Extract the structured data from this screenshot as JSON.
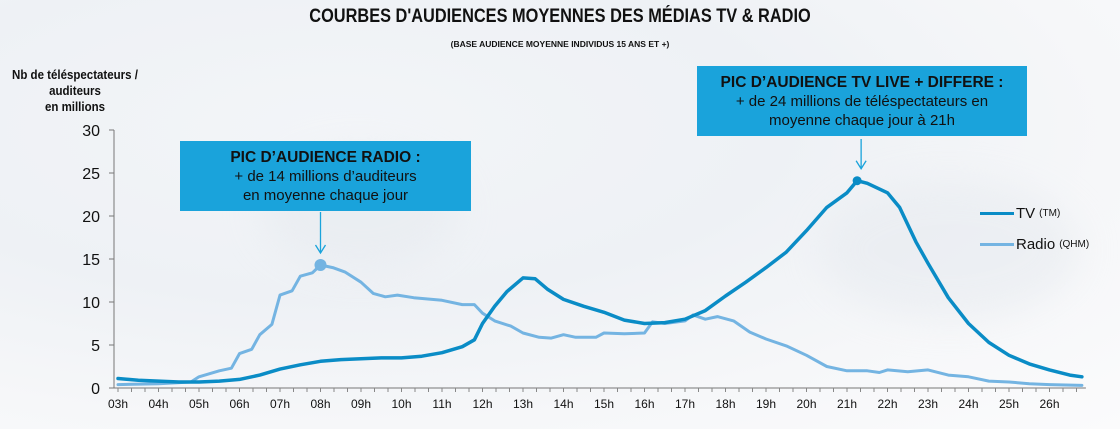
{
  "title": "COURBES D'AUDIENCES MOYENNES DES MÉDIAS TV & RADIO",
  "subtitle": "(BASE AUDIENCE MOYENNE INDIVIDUS 15 ANS ET +)",
  "callouts": {
    "radio": {
      "heading": "PIC D’AUDIENCE RADIO :",
      "line1": "+ de 14 millions d’auditeurs",
      "line2": "en moyenne chaque jour"
    },
    "tv": {
      "heading": "PIC D’AUDIENCE TV LIVE + DIFFERE :",
      "line1": "+ de 24 millions de téléspectateurs en",
      "line2": "moyenne chaque jour à 21h"
    }
  },
  "colors": {
    "tv": "#0a8cc6",
    "radio": "#74b4e2",
    "callout": "#1aa3db"
  },
  "chart_data": {
    "type": "line",
    "title": "COURBES D'AUDIENCES MOYENNES DES MÉDIAS TV & RADIO",
    "ylabel_line1": "Nb de téléspectateurs / auditeurs",
    "ylabel_line2": "en millions",
    "xlabel": "",
    "ylim": [
      0,
      30
    ],
    "yticks": [
      0,
      5,
      10,
      15,
      20,
      25,
      30
    ],
    "xlim": [
      3,
      26.8
    ],
    "xticks": [
      "03h",
      "04h",
      "05h",
      "06h",
      "07h",
      "08h",
      "09h",
      "10h",
      "11h",
      "12h",
      "13h",
      "14h",
      "15h",
      "16h",
      "17h",
      "18h",
      "19h",
      "20h",
      "21h",
      "22h",
      "23h",
      "24h",
      "25h",
      "26h"
    ],
    "grid": false,
    "legend_position": "right",
    "series": [
      {
        "name": "TV",
        "note": "(TM)",
        "color": "#0a8cc6",
        "x": [
          3,
          3.5,
          4,
          4.5,
          5,
          5.5,
          6,
          6.5,
          7,
          7.5,
          8,
          8.5,
          9,
          9.5,
          10,
          10.5,
          11,
          11.5,
          11.8,
          12,
          12.3,
          12.6,
          13,
          13.3,
          13.6,
          14,
          14.5,
          15,
          15.5,
          16,
          16.5,
          17,
          17.5,
          18,
          18.5,
          19,
          19.5,
          20,
          20.5,
          21,
          21.25,
          21.5,
          22,
          22.3,
          22.7,
          23,
          23.5,
          24,
          24.5,
          25,
          25.5,
          26,
          26.5,
          26.8
        ],
        "y": [
          1.1,
          0.9,
          0.8,
          0.7,
          0.7,
          0.8,
          1.0,
          1.5,
          2.2,
          2.7,
          3.1,
          3.3,
          3.4,
          3.5,
          3.5,
          3.7,
          4.1,
          4.8,
          5.6,
          7.5,
          9.5,
          11.2,
          12.8,
          12.7,
          11.5,
          10.3,
          9.5,
          8.8,
          7.9,
          7.5,
          7.6,
          8.0,
          9.0,
          10.7,
          12.3,
          14.0,
          15.8,
          18.3,
          21.0,
          22.7,
          24.1,
          23.8,
          22.7,
          21.0,
          17.0,
          14.5,
          10.5,
          7.5,
          5.3,
          3.8,
          2.8,
          2.1,
          1.5,
          1.3
        ],
        "peak": {
          "x": 21.25,
          "y": 24.1
        }
      },
      {
        "name": "Radio",
        "note": "(QHM)",
        "color": "#74b4e2",
        "x": [
          3,
          4,
          4.8,
          5,
          5.5,
          5.8,
          6,
          6.3,
          6.5,
          6.8,
          7,
          7.3,
          7.5,
          7.8,
          8,
          8.3,
          8.6,
          9,
          9.3,
          9.6,
          9.9,
          10.3,
          11,
          11.5,
          11.8,
          12,
          12.3,
          12.7,
          13,
          13.4,
          13.7,
          14,
          14.3,
          14.8,
          15,
          15.5,
          16,
          16.2,
          16.5,
          17,
          17.2,
          17.5,
          17.8,
          18.2,
          18.6,
          19,
          19.5,
          20,
          20.5,
          21,
          21.5,
          21.8,
          22,
          22.5,
          23,
          23.5,
          24,
          24.5,
          25,
          25.5,
          26,
          26.8
        ],
        "y": [
          0.4,
          0.5,
          0.7,
          1.3,
          2.0,
          2.3,
          4.0,
          4.5,
          6.2,
          7.4,
          10.8,
          11.3,
          13.0,
          13.4,
          14.3,
          14.0,
          13.5,
          12.3,
          11.0,
          10.6,
          10.8,
          10.5,
          10.2,
          9.7,
          9.7,
          8.7,
          7.8,
          7.2,
          6.4,
          5.9,
          5.8,
          6.2,
          5.9,
          5.9,
          6.4,
          6.3,
          6.4,
          7.7,
          7.5,
          7.8,
          8.5,
          8.0,
          8.3,
          7.8,
          6.5,
          5.7,
          4.9,
          3.8,
          2.5,
          2.0,
          2.0,
          1.8,
          2.1,
          1.9,
          2.1,
          1.5,
          1.3,
          0.8,
          0.7,
          0.5,
          0.4,
          0.3
        ],
        "peak": {
          "x": 8.0,
          "y": 14.3
        }
      }
    ]
  }
}
